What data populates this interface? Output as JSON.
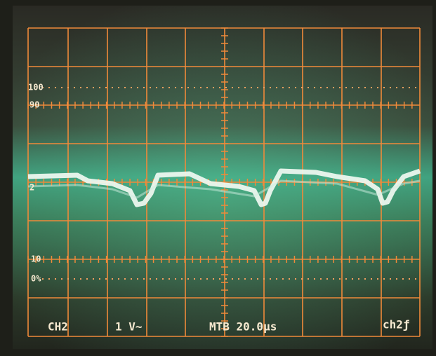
{
  "screen": {
    "scale_labels": [
      "100",
      "90",
      "10",
      "0%"
    ],
    "trace_label": "2",
    "readout": {
      "channel": "CH2",
      "volts_per_div": "1 V~",
      "timebase": "MTB 20.0µs",
      "trigger": "ch2ƒ"
    }
  }
}
